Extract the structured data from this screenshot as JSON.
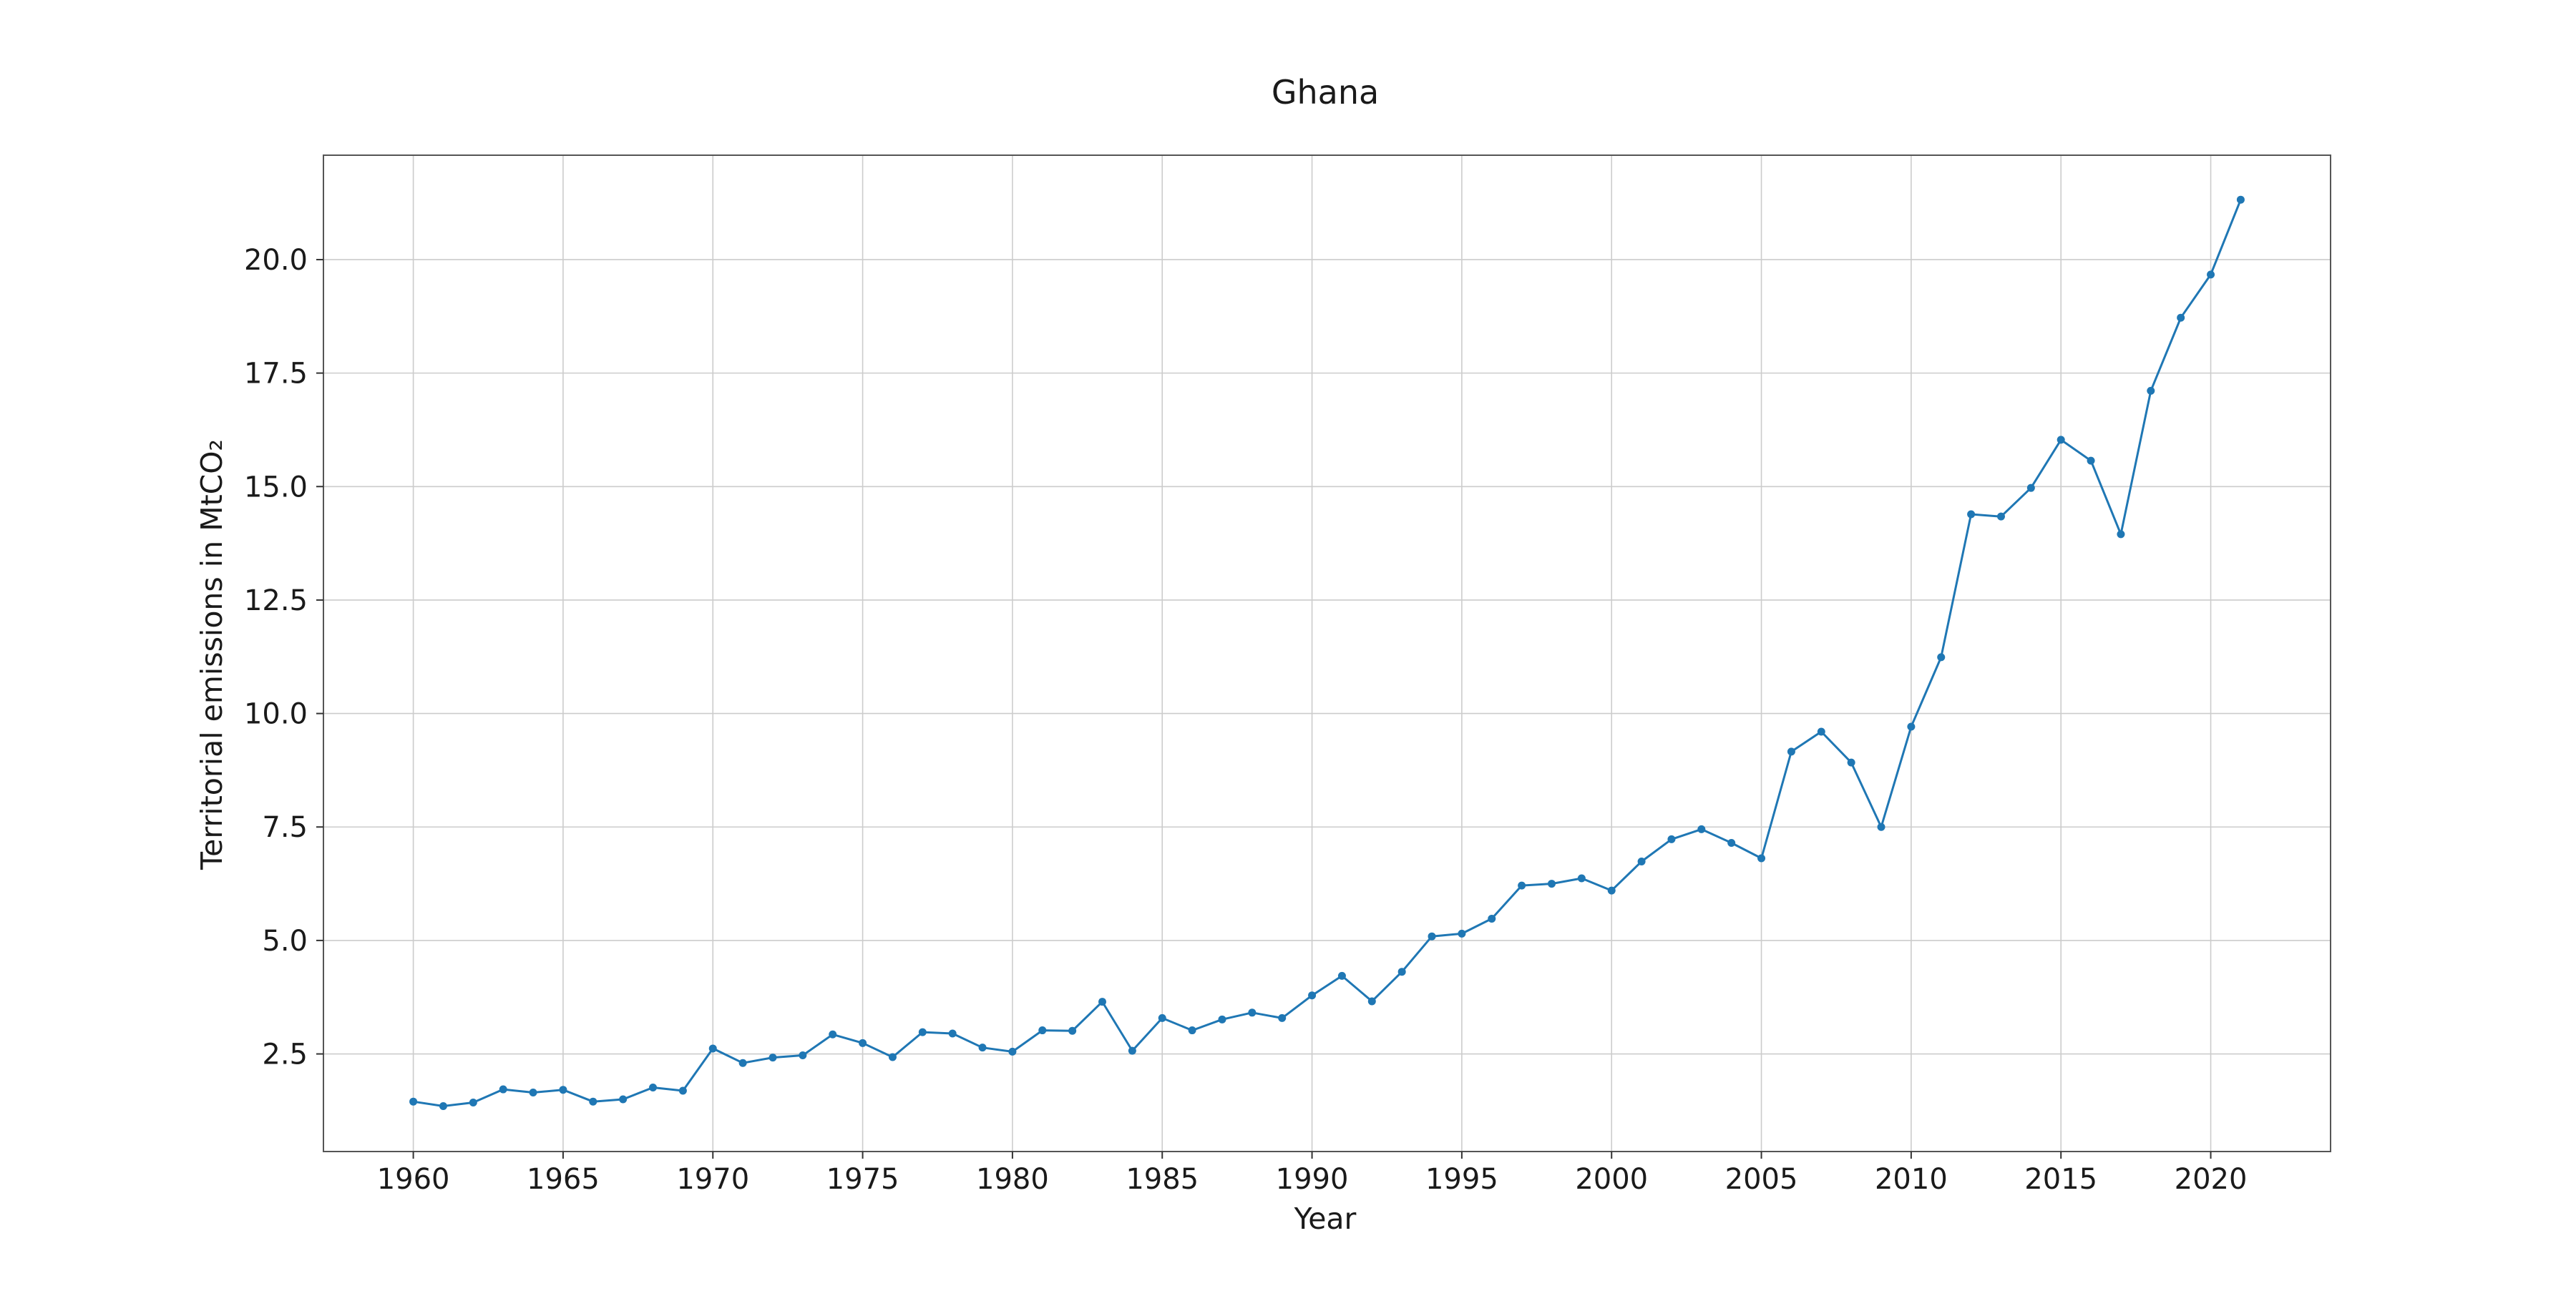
{
  "chart_data": {
    "type": "line",
    "title": "Ghana",
    "xlabel": "Year",
    "ylabel": "Territorial emissions in MtCO₂",
    "xlim": [
      1957,
      2024
    ],
    "ylim": [
      0.35,
      22.3
    ],
    "xticks": [
      1960,
      1965,
      1970,
      1975,
      1980,
      1985,
      1990,
      1995,
      2000,
      2005,
      2010,
      2015,
      2020
    ],
    "xtick_labels": [
      "1960",
      "1965",
      "1970",
      "1975",
      "1980",
      "1985",
      "1990",
      "1995",
      "2000",
      "2005",
      "2010",
      "2015",
      "2020"
    ],
    "yticks": [
      2.5,
      5.0,
      7.5,
      10.0,
      12.5,
      15.0,
      17.5,
      20.0
    ],
    "ytick_labels": [
      "2.5",
      "5.0",
      "7.5",
      "10.0",
      "12.5",
      "15.0",
      "17.5",
      "20.0"
    ],
    "grid": true,
    "colors": {
      "series": "#1f77b4",
      "grid": "#cccccc",
      "frame": "#555555"
    },
    "x": [
      1960,
      1961,
      1962,
      1963,
      1964,
      1965,
      1966,
      1967,
      1968,
      1969,
      1970,
      1971,
      1972,
      1973,
      1974,
      1975,
      1976,
      1977,
      1978,
      1979,
      1980,
      1981,
      1982,
      1983,
      1984,
      1985,
      1986,
      1987,
      1988,
      1989,
      1990,
      1991,
      1992,
      1993,
      1994,
      1995,
      1996,
      1997,
      1998,
      1999,
      2000,
      2001,
      2002,
      2003,
      2004,
      2005,
      2006,
      2007,
      2008,
      2009,
      2010,
      2011,
      2012,
      2013,
      2014,
      2015,
      2016,
      2017,
      2018,
      2019,
      2020,
      2021
    ],
    "series": [
      {
        "values": [
          1.45,
          1.35,
          1.43,
          1.72,
          1.65,
          1.71,
          1.45,
          1.5,
          1.76,
          1.69,
          2.62,
          2.3,
          2.42,
          2.47,
          2.93,
          2.74,
          2.43,
          2.98,
          2.95,
          2.64,
          2.55,
          3.02,
          3.01,
          3.65,
          2.57,
          3.29,
          3.02,
          3.26,
          3.41,
          3.29,
          3.79,
          4.22,
          3.66,
          4.31,
          5.09,
          5.15,
          5.48,
          6.21,
          6.25,
          6.37,
          6.1,
          6.74,
          7.23,
          7.45,
          7.15,
          6.81,
          9.16,
          9.6,
          8.92,
          7.5,
          9.71,
          11.24,
          14.39,
          14.34,
          14.97,
          16.03,
          15.57,
          13.95,
          17.11,
          18.72,
          19.67,
          21.32
        ]
      }
    ]
  }
}
